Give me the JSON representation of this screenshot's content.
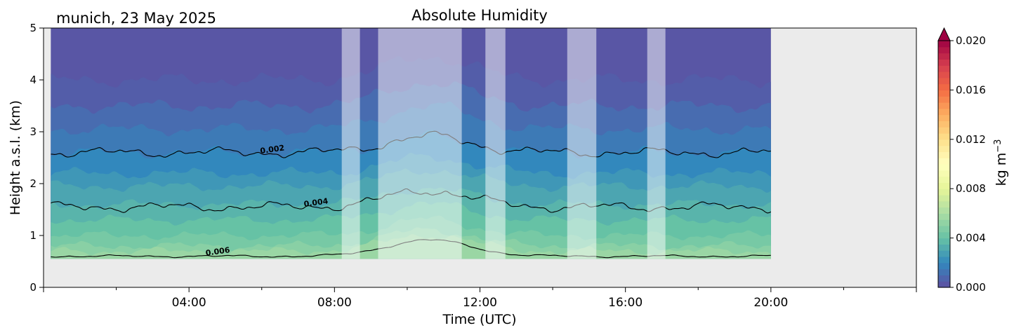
{
  "chart_data": {
    "type": "heatmap",
    "title": "Absolute Humidity",
    "location_date": "munich, 23 May 2025",
    "xlabel": "Time (UTC)",
    "ylabel": "Height a.s.l. (km)",
    "xlim_hours": [
      0,
      24
    ],
    "ylim_km": [
      0,
      5
    ],
    "x_tick_labels": [
      {
        "hour": 4,
        "label": "04:00"
      },
      {
        "hour": 8,
        "label": "08:00"
      },
      {
        "hour": 12,
        "label": "12:00"
      },
      {
        "hour": 16,
        "label": "16:00"
      },
      {
        "hour": 20,
        "label": "20:00"
      }
    ],
    "y_tick_labels": [
      "0",
      "1",
      "2",
      "3",
      "4",
      "5"
    ],
    "data_time_range_hours": [
      0.2,
      20.0
    ],
    "data_min_height_km": 0.55,
    "colorbar": {
      "label": "kg m",
      "label_superscript": "−3",
      "range": [
        0.0,
        0.02
      ],
      "extend": "max",
      "colormap": "Spectral_r",
      "tick_labels": [
        "0.000",
        "0.004",
        "0.008",
        "0.012",
        "0.016",
        "0.020"
      ],
      "colors": [
        "#5e4fa2",
        "#3288bd",
        "#66c2a5",
        "#abdda4",
        "#e6f598",
        "#ffffbf",
        "#fee08b",
        "#fdae61",
        "#f46d43",
        "#d53e4f",
        "#9e0142"
      ]
    },
    "layers": [
      {
        "value": 0.0005,
        "height_km": 4.0
      },
      {
        "value": 0.001,
        "height_km": 3.5
      },
      {
        "value": 0.0015,
        "height_km": 3.05
      },
      {
        "value": 0.002,
        "height_km": 2.6
      },
      {
        "value": 0.0025,
        "height_km": 2.2
      },
      {
        "value": 0.003,
        "height_km": 1.95
      },
      {
        "value": 0.0035,
        "height_km": 1.6
      },
      {
        "value": 0.004,
        "height_km": 1.3
      },
      {
        "value": 0.0045,
        "height_km": 1.0
      },
      {
        "value": 0.005,
        "height_km": 0.8
      },
      {
        "value": 0.0055,
        "height_km": 0.7
      }
    ],
    "contours": [
      {
        "value": 0.002,
        "label": "0.002",
        "height_km": 2.6,
        "label_hour": 6.3
      },
      {
        "value": 0.004,
        "label": "0.004",
        "height_km": 1.55,
        "label_hour": 7.5
      },
      {
        "value": 0.006,
        "label": "0.006",
        "height_km": 0.6,
        "label_hour": 4.8
      }
    ],
    "masked_periods_hours": [
      [
        8.2,
        8.7
      ],
      [
        9.2,
        11.5
      ],
      [
        12.15,
        12.7
      ],
      [
        14.4,
        15.2
      ],
      [
        16.6,
        17.1
      ]
    ]
  }
}
